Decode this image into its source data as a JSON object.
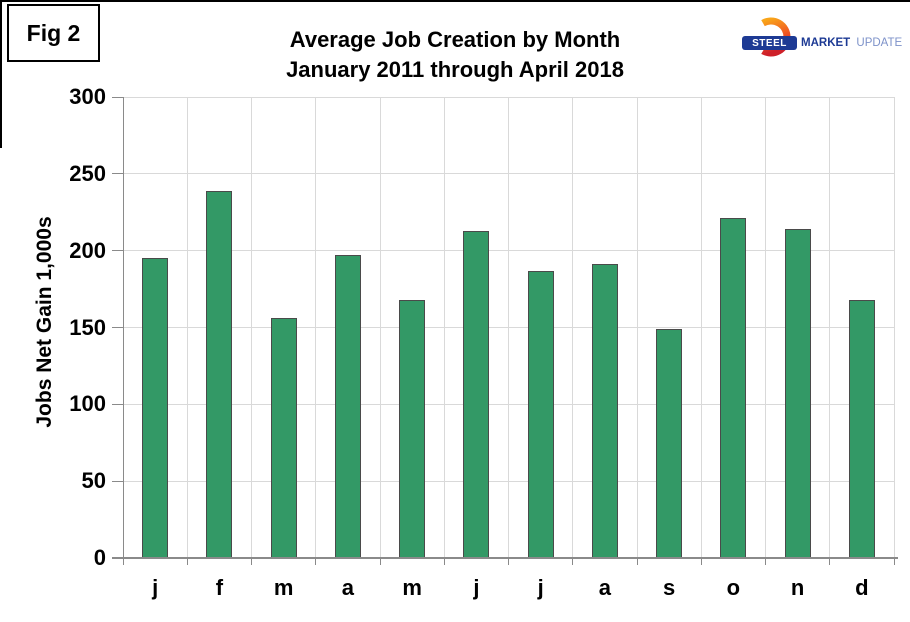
{
  "figure": {
    "label": "Fig 2"
  },
  "logo": {
    "steel": "STEEL",
    "market": "MARKET",
    "update": "UPDATE"
  },
  "chart_data": {
    "type": "bar",
    "title": "Average Job Creation by Month",
    "subtitle": "January 2011 through April 2018",
    "ylabel": "Jobs Net Gain 1,000s",
    "xlabel": "",
    "categories": [
      "j",
      "f",
      "m",
      "a",
      "m",
      "j",
      "j",
      "a",
      "s",
      "o",
      "n",
      "d"
    ],
    "values": [
      195,
      239,
      156,
      197,
      168,
      213,
      187,
      191,
      149,
      221,
      214,
      168
    ],
    "ylim": [
      0,
      300
    ],
    "yticks": [
      0,
      50,
      100,
      150,
      200,
      250,
      300
    ],
    "grid": true,
    "legend": "none"
  },
  "colors": {
    "bar_fill": "#339966",
    "bar_border": "#4a4a4a",
    "grid": "#d9d9d9",
    "axis": "#8a8a8a",
    "logo_navy": "#1d3a94",
    "logo_light_blue": "#7d92c9",
    "logo_orange_top": "#F9A51A",
    "logo_orange_mid": "#F05A22",
    "logo_red_bottom": "#CE2029",
    "text": "#000000"
  }
}
